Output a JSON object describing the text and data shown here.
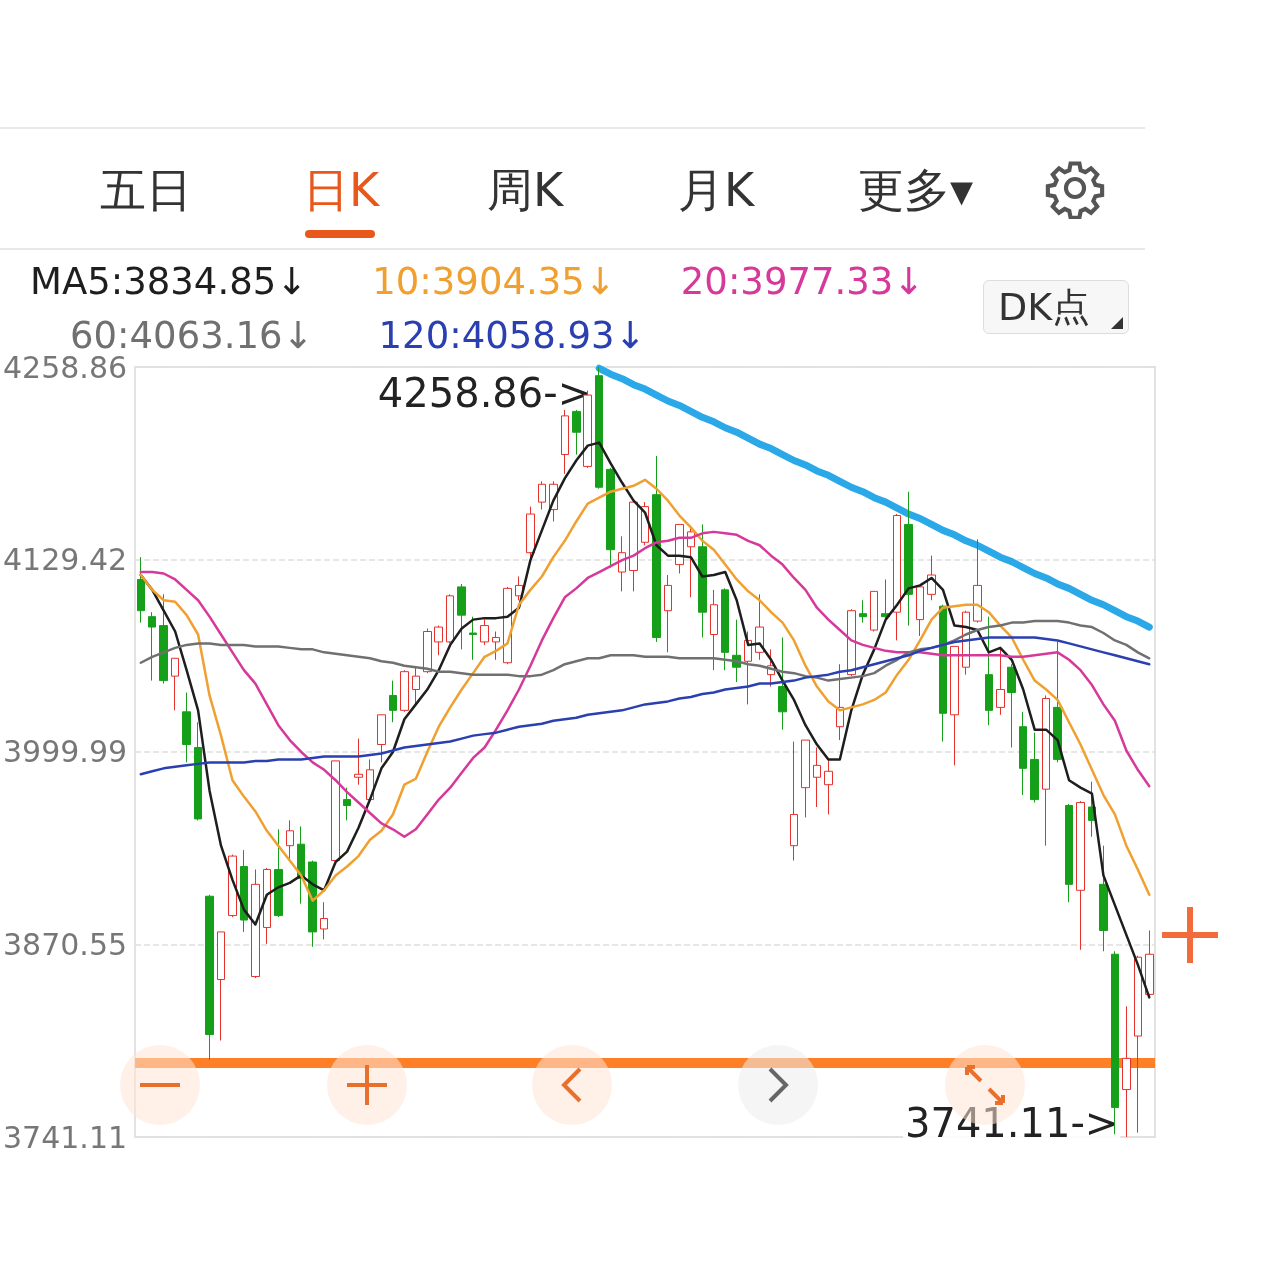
{
  "chart_data": {
    "type": "candlestick",
    "categories": [
      null,
      null,
      null,
      null,
      null,
      null,
      null,
      null,
      null,
      null,
      null,
      null,
      null,
      null,
      null,
      null,
      null,
      null,
      null,
      null,
      null,
      null,
      null,
      null,
      null,
      null,
      null,
      null,
      null,
      null,
      null,
      null,
      null,
      null,
      null,
      null,
      null,
      null,
      null,
      null,
      null,
      null,
      null,
      null,
      null,
      null,
      null,
      null,
      null,
      null,
      null,
      null,
      null,
      null,
      null,
      null,
      null,
      null,
      null,
      null,
      null,
      null,
      null,
      null,
      null,
      null,
      null,
      null,
      null,
      null,
      null,
      null,
      null,
      null,
      null,
      null,
      null,
      null,
      null,
      null,
      null,
      null,
      null,
      null,
      null,
      null,
      null,
      null,
      null
    ],
    "ohlc": [
      [
        4116,
        4131,
        4087,
        4095
      ],
      [
        4091,
        4094,
        4048,
        4084
      ],
      [
        4085,
        4106,
        4046,
        4048
      ],
      [
        4051,
        4063,
        4028,
        4063
      ],
      [
        4027,
        4040,
        3993,
        4005
      ],
      [
        4003,
        4020,
        3954,
        3955
      ],
      [
        3903,
        3904,
        3793,
        3810
      ],
      [
        3847,
        3879,
        3806,
        3879
      ],
      [
        3890,
        3931,
        3889,
        3930
      ],
      [
        3923,
        3934,
        3879,
        3887
      ],
      [
        3849,
        3921,
        3848,
        3911
      ],
      [
        3882,
        3922,
        3871,
        3921
      ],
      [
        3921,
        3948,
        3889,
        3890
      ],
      [
        3937,
        3954,
        3928,
        3947
      ],
      [
        3938,
        3950,
        3898,
        3915
      ],
      [
        3926,
        3927,
        3869,
        3879
      ],
      [
        3881,
        3899,
        3874,
        3888
      ],
      [
        3927,
        3994,
        3926,
        3994
      ],
      [
        3968,
        3976,
        3954,
        3964
      ],
      [
        3983,
        4009,
        3978,
        3985
      ],
      [
        3968,
        3995,
        3967,
        3988
      ],
      [
        4005,
        4025,
        3993,
        4025
      ],
      [
        4038,
        4048,
        4020,
        4028
      ],
      [
        4028,
        4055,
        4027,
        4054
      ],
      [
        4042,
        4057,
        4032,
        4051
      ],
      [
        4054,
        4083,
        4053,
        4081
      ],
      [
        4074,
        4085,
        4065,
        4084
      ],
      [
        4074,
        4106,
        4073,
        4105
      ],
      [
        4111,
        4113,
        4069,
        4092
      ],
      [
        4080,
        4091,
        4062,
        4079
      ],
      [
        4074,
        4089,
        4072,
        4085
      ],
      [
        4074,
        4081,
        4062,
        4077
      ],
      [
        4060,
        4111,
        4059,
        4110
      ],
      [
        4105,
        4118,
        4102,
        4112
      ],
      [
        4134,
        4165,
        4130,
        4160
      ],
      [
        4168,
        4182,
        4163,
        4180
      ],
      [
        4163,
        4182,
        4155,
        4180
      ],
      [
        4200,
        4230,
        4187,
        4226
      ],
      [
        4229,
        4230,
        4200,
        4215
      ],
      [
        4192,
        4243,
        4191,
        4240
      ],
      [
        4253,
        4258.86,
        4177,
        4178
      ],
      [
        4190,
        4191,
        4124,
        4136
      ],
      [
        4121,
        4145,
        4108,
        4134
      ],
      [
        4122,
        4169,
        4108,
        4168
      ],
      [
        4141,
        4168,
        4139,
        4165
      ],
      [
        4173,
        4199,
        4074,
        4077
      ],
      [
        4095,
        4119,
        4067,
        4112
      ],
      [
        4126,
        4153,
        4120,
        4153
      ],
      [
        4138,
        4151,
        4104,
        4148
      ],
      [
        4138,
        4153,
        4077,
        4094
      ],
      [
        4079,
        4109,
        4055,
        4099
      ],
      [
        4109,
        4110,
        4055,
        4067
      ],
      [
        4065,
        4089,
        4047,
        4057
      ],
      [
        4061,
        4081,
        4032,
        4075
      ],
      [
        4067,
        4106,
        4062,
        4084
      ],
      [
        4052,
        4069,
        4044,
        4058
      ],
      [
        4044,
        4077,
        4015,
        4027
      ],
      [
        3937,
        4007,
        3927,
        3958
      ],
      [
        3976,
        4008,
        3956,
        4008
      ],
      [
        3983,
        4003,
        3963,
        3991
      ],
      [
        3978,
        3995,
        3958,
        3987
      ],
      [
        4017,
        4059,
        4008,
        4030
      ],
      [
        4052,
        4096,
        4051,
        4095
      ],
      [
        4093,
        4102,
        4087,
        4091
      ],
      [
        4082,
        4108,
        4081,
        4108
      ],
      [
        4093,
        4116,
        4089,
        4091
      ],
      [
        4094,
        4160,
        4075,
        4159
      ],
      [
        4153,
        4175,
        4085,
        4106
      ],
      [
        4089,
        4112,
        4078,
        4111
      ],
      [
        4106,
        4132,
        4102,
        4119
      ],
      [
        4098,
        4099,
        4007,
        4026
      ],
      [
        4025,
        4071,
        3991,
        4071
      ],
      [
        4057,
        4095,
        4052,
        4094
      ],
      [
        4088,
        4143,
        4087,
        4112
      ],
      [
        4052,
        4091,
        4018,
        4028
      ],
      [
        4030,
        4069,
        4025,
        4042
      ],
      [
        4057,
        4059,
        4003,
        4040
      ],
      [
        4017,
        4027,
        3971,
        3989
      ],
      [
        3995,
        4013,
        3966,
        3968
      ],
      [
        3975,
        4038,
        3937,
        4036
      ],
      [
        4030,
        4074,
        3993,
        3995
      ],
      [
        3964,
        3965,
        3899,
        3911
      ],
      [
        3907,
        3967,
        3867,
        3966
      ],
      [
        3963,
        3980,
        3943,
        3954
      ],
      [
        3911,
        3937,
        3866,
        3880
      ],
      [
        3864,
        3866,
        3743,
        3761
      ],
      [
        3773,
        3829,
        3741.11,
        3794
      ],
      [
        3809,
        3863,
        3744,
        3862
      ],
      [
        3837,
        3880,
        3836,
        3864
      ]
    ],
    "colors": [
      "#16a01a",
      "#16a01a",
      "#16a01a",
      "#e5322d",
      "#16a01a",
      "#16a01a",
      "#16a01a",
      "#e5322d",
      "#e5322d",
      "#16a01a",
      "#e5322d",
      "#e5322d",
      "#16a01a",
      "#e5322d",
      "#16a01a",
      "#16a01a",
      "#e5322d",
      "#e5322d",
      "#16a01a",
      "#e5322d",
      "#e5322d",
      "#e5322d",
      "#16a01a",
      "#e5322d",
      "#e5322d",
      "#e5322d",
      "#e5322d",
      "#e5322d",
      "#16a01a",
      "#16a01a",
      "#e5322d",
      "#e5322d",
      "#e5322d",
      "#e5322d",
      "#e5322d",
      "#e5322d",
      "#e5322d",
      "#e5322d",
      "#16a01a",
      "#e5322d",
      "#16a01a",
      "#16a01a",
      "#e5322d",
      "#e5322d",
      "#e5322d",
      "#16a01a",
      "#e5322d",
      "#e5322d",
      "#e5322d",
      "#16a01a",
      "#e5322d",
      "#16a01a",
      "#16a01a",
      "#e5322d",
      "#e5322d",
      "#e5322d",
      "#16a01a",
      "#e5322d",
      "#e5322d",
      "#e5322d",
      "#e5322d",
      "#e5322d",
      "#e5322d",
      "#16a01a",
      "#e5322d",
      "#16a01a",
      "#e5322d",
      "#16a01a",
      "#e5322d",
      "#e5322d",
      "#16a01a",
      "#e5322d",
      "#e5322d",
      "#e5322d",
      "#16a01a",
      "#e5322d",
      "#16a01a",
      "#16a01a",
      "#16a01a",
      "#e5322d",
      "#16a01a",
      "#16a01a",
      "#e5322d",
      "#16a01a",
      "#16a01a",
      "#16a01a",
      "#e5322d",
      "#e5322d",
      "#e5322d"
    ],
    "series": [
      {
        "type": "line",
        "name": "MA5:3834.85↓",
        "color": "#1e1e1e",
        "values": [
          4119,
          4109,
          4095,
          4081,
          4055,
          4028,
          3974,
          3937,
          3914,
          3894,
          3884,
          3904,
          3909,
          3912,
          3917,
          3911,
          3907,
          3926,
          3933,
          3949,
          3968,
          3989,
          4000,
          4022,
          4032,
          4042,
          4055,
          4072,
          4083,
          4089,
          4090,
          4090,
          4091,
          4097,
          4129,
          4149,
          4169,
          4184,
          4196,
          4206,
          4208,
          4194,
          4181,
          4169,
          4161,
          4139,
          4132,
          4132,
          4131,
          4118,
          4119,
          4121,
          4102,
          4072,
          4073,
          4062,
          4048,
          4035,
          4018,
          4005,
          3995,
          3995,
          4028,
          4052,
          4069,
          4089,
          4099,
          4110,
          4112,
          4117,
          4109,
          4085,
          4084,
          4082,
          4067,
          4070,
          4062,
          4042,
          4015,
          4015,
          4008,
          3981,
          3976,
          3972,
          3917,
          3897,
          3877,
          3857,
          3835
        ]
      },
      {
        "type": "line",
        "name": "10:3904.35↓",
        "color": "#f0a030",
        "values": [
          4119,
          4109,
          4102,
          4101,
          4092,
          4079,
          4038,
          4011,
          3981,
          3970,
          3960,
          3947,
          3937,
          3927,
          3917,
          3900,
          3907,
          3917,
          3923,
          3930,
          3941,
          3947,
          3958,
          3978,
          3982,
          4000,
          4017,
          4030,
          4042,
          4053,
          4064,
          4068,
          4073,
          4099,
          4109,
          4118,
          4131,
          4142,
          4155,
          4167,
          4171,
          4175,
          4177,
          4179,
          4183,
          4177,
          4169,
          4159,
          4151,
          4142,
          4136,
          4126,
          4116,
          4108,
          4102,
          4094,
          4087,
          4075,
          4058,
          4044,
          4034,
          4028,
          4030,
          4032,
          4035,
          4040,
          4052,
          4062,
          4075,
          4089,
          4097,
          4098,
          4099,
          4099,
          4094,
          4085,
          4077,
          4062,
          4048,
          4042,
          4035,
          4020,
          4005,
          3988,
          3971,
          3958,
          3937,
          3921,
          3904
        ]
      },
      {
        "type": "line",
        "name": "20:3977.33↓",
        "color": "#d6399a",
        "values": [
          4121,
          4121,
          4120,
          4116,
          4109,
          4102,
          4091,
          4079,
          4067,
          4055,
          4046,
          4032,
          4018,
          4008,
          4000,
          3993,
          3988,
          3981,
          3973,
          3966,
          3959,
          3952,
          3948,
          3943,
          3948,
          3958,
          3968,
          3976,
          3986,
          3996,
          4003,
          4015,
          4028,
          4042,
          4058,
          4075,
          4090,
          4104,
          4110,
          4117,
          4121,
          4125,
          4129,
          4132,
          4137,
          4141,
          4142,
          4144,
          4144,
          4147,
          4148,
          4147,
          4146,
          4142,
          4139,
          4132,
          4126,
          4117,
          4109,
          4097,
          4089,
          4082,
          4075,
          4072,
          4070,
          4068,
          4067,
          4067,
          4067,
          4066,
          4065,
          4065,
          4065,
          4065,
          4065,
          4065,
          4064,
          4064,
          4065,
          4066,
          4067,
          4062,
          4055,
          4045,
          4032,
          4021,
          4001,
          3988,
          3977
        ]
      },
      {
        "type": "line",
        "name": "60:4063.16↓",
        "color": "#707070",
        "values": [
          4060,
          4064,
          4067,
          4070,
          4072,
          4073,
          4073,
          4072,
          4072,
          4072,
          4071,
          4071,
          4071,
          4070,
          4069,
          4069,
          4067,
          4066,
          4065,
          4064,
          4063,
          4061,
          4060,
          4058,
          4057,
          4056,
          4054,
          4054,
          4053,
          4052,
          4052,
          4052,
          4052,
          4051,
          4051,
          4052,
          4055,
          4059,
          4061,
          4063,
          4063,
          4065,
          4065,
          4065,
          4064,
          4064,
          4064,
          4063,
          4063,
          4063,
          4063,
          4062,
          4061,
          4059,
          4058,
          4056,
          4054,
          4053,
          4051,
          4050,
          4048,
          4049,
          4050,
          4051,
          4053,
          4058,
          4062,
          4067,
          4069,
          4070,
          4072,
          4075,
          4079,
          4082,
          4084,
          4085,
          4087,
          4087,
          4088,
          4088,
          4088,
          4087,
          4085,
          4084,
          4080,
          4075,
          4072,
          4067,
          4063
        ]
      },
      {
        "type": "line",
        "name": "120:4058.93↓",
        "color": "#2a3fb0",
        "values": [
          3985,
          3987,
          3989,
          3990,
          3991,
          3992,
          3993,
          3993,
          3993,
          3993,
          3994,
          3994,
          3995,
          3995,
          3995,
          3996,
          3997,
          3997,
          3997,
          3997,
          3998,
          3999,
          4001,
          4003,
          4004,
          4005,
          4006,
          4007,
          4009,
          4011,
          4012,
          4013,
          4015,
          4017,
          4018,
          4019,
          4021,
          4022,
          4023,
          4025,
          4026,
          4027,
          4028,
          4030,
          4032,
          4033,
          4034,
          4036,
          4037,
          4039,
          4040,
          4042,
          4043,
          4044,
          4046,
          4046,
          4047,
          4048,
          4050,
          4051,
          4052,
          4054,
          4055,
          4057,
          4059,
          4061,
          4063,
          4065,
          4068,
          4070,
          4072,
          4074,
          4075,
          4076,
          4077,
          4077,
          4077,
          4077,
          4077,
          4076,
          4075,
          4073,
          4071,
          4069,
          4067,
          4065,
          4063,
          4061,
          4059
        ]
      },
      {
        "type": "line",
        "color": "#2aa8e8",
        "values": [
          null,
          null,
          null,
          null,
          null,
          null,
          null,
          null,
          null,
          null,
          null,
          null,
          null,
          null,
          null,
          null,
          null,
          null,
          null,
          null,
          null,
          null,
          null,
          null,
          null,
          null,
          null,
          null,
          null,
          null,
          null,
          null,
          null,
          null,
          null,
          null,
          null,
          null,
          null,
          null,
          4258,
          4254,
          4251,
          4247,
          4244,
          4240,
          4236,
          4233,
          4229,
          4225,
          4222,
          4218,
          4215,
          4211,
          4207,
          4204,
          4200,
          4196,
          4193,
          4189,
          4186,
          4182,
          4178,
          4175,
          4171,
          4168,
          4164,
          4160,
          4157,
          4153,
          4149,
          4146,
          4142,
          4139,
          4135,
          4131,
          4128,
          4124,
          4120,
          4117,
          4113,
          4110,
          4106,
          4102,
          4099,
          4095,
          4091,
          4088,
          4084
        ]
      }
    ],
    "ylim": [
      3741.11,
      4258.86
    ],
    "yticks": [
      3741.11,
      3870.55,
      3999.99,
      4129.42,
      4258.86
    ],
    "grid": "y",
    "legend": "top left",
    "marker": "none",
    "tick_labels": "y",
    "ref_lines": [
      {
        "axis": "y",
        "value": 3791,
        "color": "#ff7f27"
      }
    ],
    "annotations": [
      "五日",
      "日K",
      "周K",
      "月K",
      "更多▾",
      "DK点",
      "4258.86->",
      "3741.11->"
    ]
  }
}
